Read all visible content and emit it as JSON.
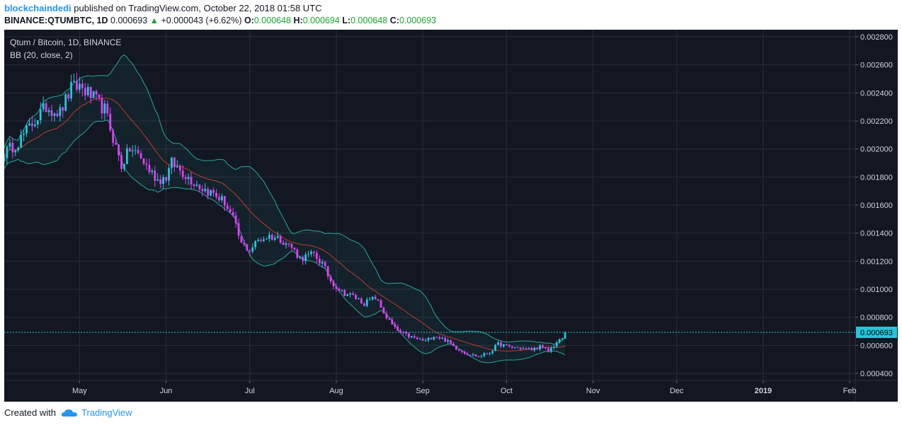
{
  "header": {
    "author": "blockchaindedi",
    "published_text": "published on TradingView.com, October 22, 2018 01:58 UTC",
    "symbol_line": "BINANCE:QTUMBTC, 1D",
    "last": "0.000693",
    "change_arrow": "▲",
    "change": "+0.000043 (+6.62%)",
    "o_label": "O:",
    "o": "0.000648",
    "h_label": "H:",
    "h": "0.000694",
    "l_label": "L:",
    "l": "0.000648",
    "c_label": "C:",
    "c": "0.000693"
  },
  "legend": {
    "title": "Qtum / Bitcoin, 1D, BINANCE",
    "indicator": "BB (20, close, 2)"
  },
  "footer": {
    "created_with": "Created with",
    "brand": "TradingView"
  },
  "colors": {
    "background": "#131722",
    "bull": "#26c6da",
    "bear": "#e040fb",
    "bb_band": "#26a69a",
    "bb_basis": "#c0392b",
    "price_line": "#26c6da",
    "axis_text": "#d1d4dc"
  },
  "chart_data": {
    "type": "candlestick",
    "ylim": [
      0.00035,
      0.00285
    ],
    "y_ticks": [
      "0.000400",
      "0.000600",
      "0.000800",
      "0.001000",
      "0.001200",
      "0.001400",
      "0.001600",
      "0.001800",
      "0.002000",
      "0.002200",
      "0.002400",
      "0.002600",
      "0.002800"
    ],
    "x_ticks": [
      "May",
      "Jun",
      "Jul",
      "Aug",
      "Sep",
      "Oct",
      "Nov",
      "Dec",
      "2019",
      "Feb"
    ],
    "last_price_label": "0.000693",
    "last_price": 0.000693,
    "x_start": "2018-04-04",
    "close_path": [
      [
        "2018-04-04",
        0.00197
      ],
      [
        "2018-04-09",
        0.00205
      ],
      [
        "2018-04-14",
        0.00218
      ],
      [
        "2018-04-19",
        0.0023
      ],
      [
        "2018-04-24",
        0.00226
      ],
      [
        "2018-04-28",
        0.00243
      ],
      [
        "2018-05-01",
        0.00245
      ],
      [
        "2018-05-05",
        0.00238
      ],
      [
        "2018-05-08",
        0.00232
      ],
      [
        "2018-05-10",
        0.00228
      ],
      [
        "2018-05-13",
        0.00208
      ],
      [
        "2018-05-16",
        0.00188
      ],
      [
        "2018-05-19",
        0.002
      ],
      [
        "2018-05-22",
        0.00196
      ],
      [
        "2018-05-26",
        0.00185
      ],
      [
        "2018-05-29",
        0.00178
      ],
      [
        "2018-06-01",
        0.0018
      ],
      [
        "2018-06-03",
        0.0019
      ],
      [
        "2018-06-06",
        0.00185
      ],
      [
        "2018-06-10",
        0.00178
      ],
      [
        "2018-06-14",
        0.00172
      ],
      [
        "2018-06-18",
        0.00168
      ],
      [
        "2018-06-22",
        0.00162
      ],
      [
        "2018-06-25",
        0.0015
      ],
      [
        "2018-06-28",
        0.00132
      ],
      [
        "2018-07-01",
        0.00128
      ],
      [
        "2018-07-04",
        0.00135
      ],
      [
        "2018-07-08",
        0.00138
      ],
      [
        "2018-07-12",
        0.00136
      ],
      [
        "2018-07-16",
        0.0013
      ],
      [
        "2018-07-19",
        0.00122
      ],
      [
        "2018-07-24",
        0.00125
      ],
      [
        "2018-07-27",
        0.00118
      ],
      [
        "2018-07-30",
        0.00106
      ],
      [
        "2018-08-03",
        0.00098
      ],
      [
        "2018-08-07",
        0.00095
      ],
      [
        "2018-08-11",
        0.0009
      ],
      [
        "2018-08-15",
        0.00094
      ],
      [
        "2018-08-19",
        0.0008
      ],
      [
        "2018-08-22",
        0.00072
      ],
      [
        "2018-08-25",
        0.00068
      ],
      [
        "2018-08-29",
        0.00065
      ],
      [
        "2018-09-02",
        0.00063
      ],
      [
        "2018-09-05",
        0.00067
      ],
      [
        "2018-09-09",
        0.00064
      ],
      [
        "2018-09-13",
        0.00058
      ],
      [
        "2018-09-17",
        0.00054
      ],
      [
        "2018-09-21",
        0.00052
      ],
      [
        "2018-09-25",
        0.00055
      ],
      [
        "2018-09-28",
        0.00061
      ],
      [
        "2018-10-02",
        0.00059
      ],
      [
        "2018-10-06",
        0.00058
      ],
      [
        "2018-10-10",
        0.00057
      ],
      [
        "2018-10-13",
        0.00059
      ],
      [
        "2018-10-16",
        0.00056
      ],
      [
        "2018-10-19",
        0.00062
      ],
      [
        "2018-10-21",
        0.00065
      ],
      [
        "2018-10-22",
        0.000693
      ]
    ]
  }
}
